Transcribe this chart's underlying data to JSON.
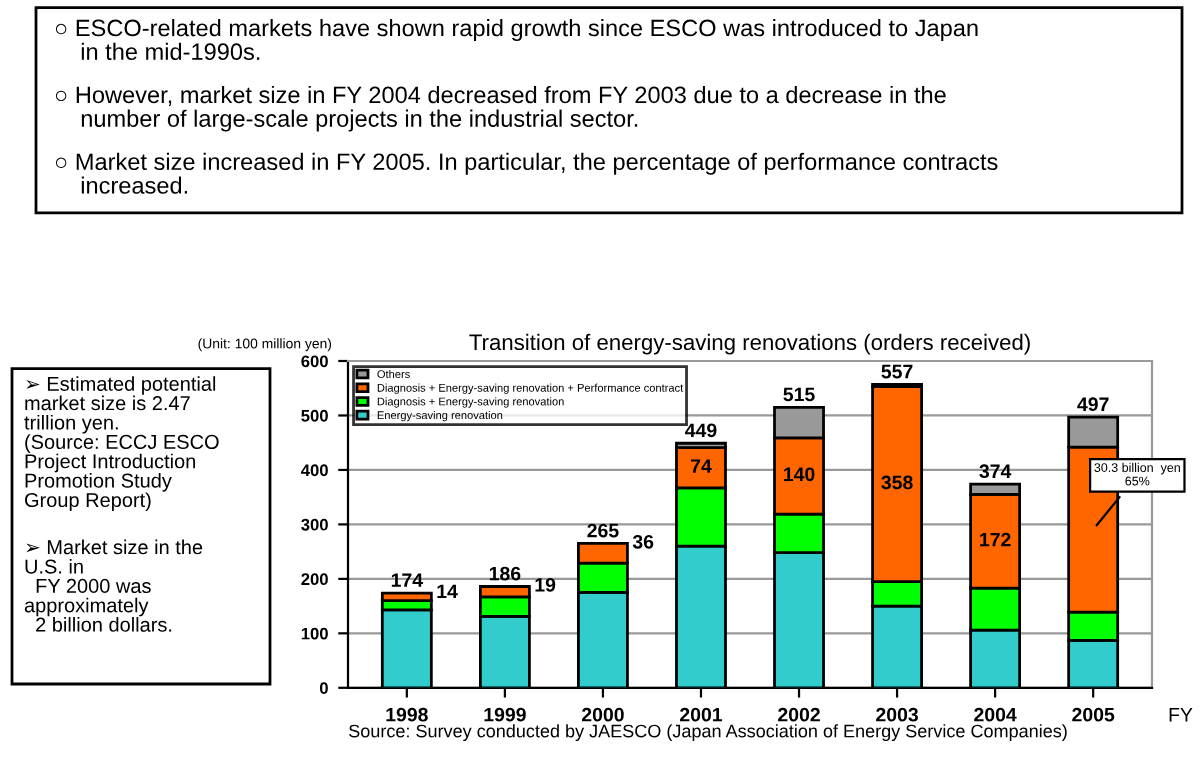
{
  "chart_data": {
    "type": "bar",
    "stacked": true,
    "title": "Transition of energy-saving renovations (orders received)",
    "ylabel": "(Unit: 100 million yen)",
    "xlabel": "FY",
    "categories": [
      "1998",
      "1999",
      "2000",
      "2001",
      "2002",
      "2003",
      "2004",
      "2005"
    ],
    "series": [
      {
        "name": "Energy-saving renovation",
        "color": "#33cccc",
        "values": [
          143,
          131,
          175,
          260,
          248,
          150,
          106,
          87
        ]
      },
      {
        "name": "Diagnosis + Energy-saving renovation",
        "color": "#00ff00",
        "values": [
          17,
          36,
          54,
          107,
          71,
          45,
          77,
          52
        ]
      },
      {
        "name": "Diagnosis + Energy-saving renovation + Performance contract",
        "color": "#ff6600",
        "values": [
          14,
          19,
          36,
          74,
          140,
          358,
          172,
          303
        ],
        "value_labels": [
          "14",
          "19",
          "36",
          "74",
          "140",
          "358",
          "172",
          null
        ]
      },
      {
        "name": "Others",
        "color": "#999999",
        "values": [
          null,
          null,
          null,
          8,
          56,
          4,
          19,
          55
        ]
      }
    ],
    "totals": [
      "174",
      "186",
      "265",
      "449",
      "515",
      "557",
      "374",
      "497"
    ],
    "ylim": [
      0,
      600
    ],
    "yticks": [
      0,
      100,
      200,
      300,
      400,
      500,
      600
    ],
    "grid": "y",
    "legend": "top left",
    "annotations": [
      "○ ESCO-related markets have shown rapid growth since ESCO was introduced to Japan\n    in the mid-1990s.",
      "○ However, market size in FY 2004 decreased from FY 2003 due to a decrease in the\n    number of large-scale projects in the industrial sector.",
      "○ Market size increased in FY 2005. In particular, the percentage of performance contracts\n    increased.",
      "➢ Estimated potential\nmarket size is 2.47\ntrillion yen.\n(Source: ECCJ ESCO\nProject Introduction\nPromotion Study\nGroup Report)",
      "➢ Market size in the\nU.S. in\n  FY 2000 was\napproximately\n  2 billion dollars.",
      "Source: Survey conducted by JAESCO (Japan Association of Energy Service Companies)",
      "30.3 billion  yen\n65%"
    ]
  }
}
